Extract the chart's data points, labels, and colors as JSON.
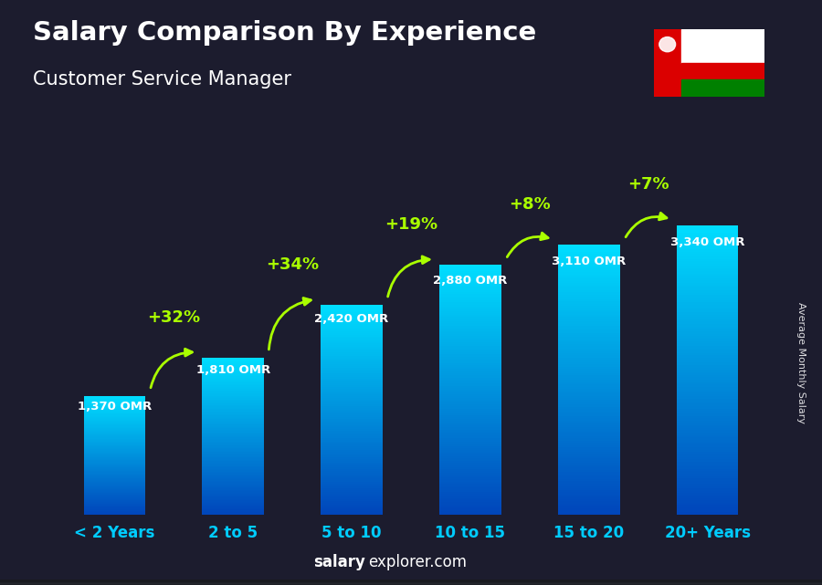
{
  "categories": [
    "< 2 Years",
    "2 to 5",
    "5 to 10",
    "10 to 15",
    "15 to 20",
    "20+ Years"
  ],
  "values": [
    1370,
    1810,
    2420,
    2880,
    3110,
    3340
  ],
  "value_labels": [
    "1,370 OMR",
    "1,810 OMR",
    "2,420 OMR",
    "2,880 OMR",
    "3,110 OMR",
    "3,340 OMR"
  ],
  "pct_changes": [
    null,
    "+32%",
    "+34%",
    "+19%",
    "+8%",
    "+7%"
  ],
  "title_line1": "Salary Comparison By Experience",
  "title_line2": "Customer Service Manager",
  "ylabel": "Average Monthly Salary",
  "footer_bold": "salary",
  "footer_normal": "explorer.com",
  "bar_color_top": "#00ddff",
  "bar_color_bottom": "#0044bb",
  "bg_color": "#1c1c2e",
  "text_color_white": "#ffffff",
  "text_color_cyan": "#00ccff",
  "text_color_green": "#aaff00",
  "arrow_color": "#aaff00",
  "flag_red": "#DB0000",
  "flag_green": "#008000",
  "flag_white": "#FFFFFF"
}
